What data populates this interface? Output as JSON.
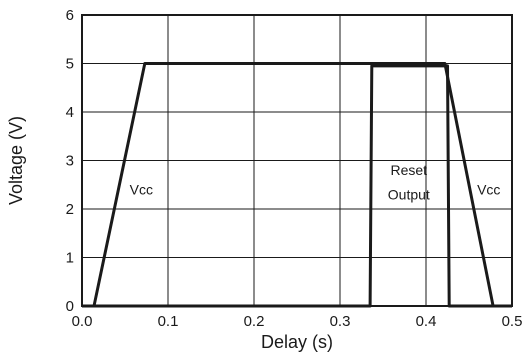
{
  "chart_data": {
    "type": "line",
    "title": "",
    "xlabel": "Delay (s)",
    "ylabel": "Voltage (V)",
    "xlim": [
      0.0,
      0.5
    ],
    "ylim": [
      0,
      6
    ],
    "x_ticks": [
      "0.0",
      "0.1",
      "0.2",
      "0.3",
      "0.4",
      "0.5"
    ],
    "y_ticks": [
      "0",
      "1",
      "2",
      "3",
      "4",
      "5",
      "6"
    ],
    "grid": true,
    "legend": "none",
    "series": [
      {
        "color": "#1a1a1a",
        "points": [
          [
            0.0,
            0
          ],
          [
            0.014,
            0
          ],
          [
            0.073,
            5
          ],
          [
            0.422,
            5
          ],
          [
            0.478,
            0
          ],
          [
            0.5,
            0
          ]
        ]
      },
      {
        "color": "#1a1a1a",
        "points": [
          [
            0.0,
            0
          ],
          [
            0.335,
            0
          ],
          [
            0.337,
            4.95
          ],
          [
            0.425,
            4.95
          ],
          [
            0.427,
            0
          ],
          [
            0.5,
            0
          ]
        ]
      }
    ],
    "annotations": [
      {
        "text": "Vcc",
        "x": 0.069,
        "y": 2.4
      },
      {
        "text": "Reset",
        "x": 0.38,
        "y": 2.8
      },
      {
        "text": "Output",
        "x": 0.38,
        "y": 2.3
      },
      {
        "text": "Vcc",
        "x": 0.473,
        "y": 2.4
      }
    ]
  }
}
